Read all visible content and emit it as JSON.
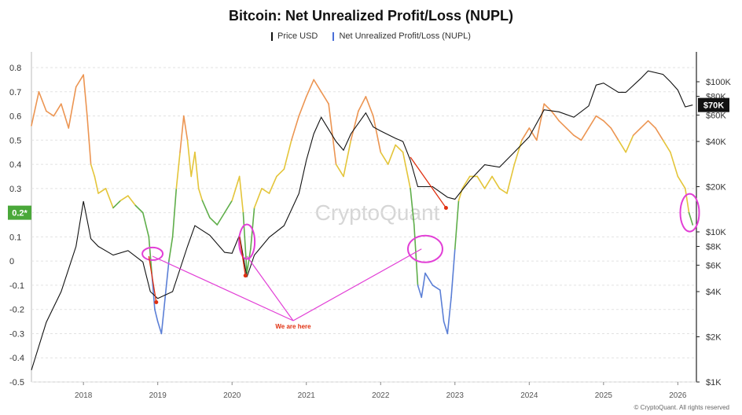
{
  "chart_data": {
    "type": "line",
    "title": "Bitcoin: Net Unrealized Profit/Loss (NUPL)",
    "legend": [
      "Price USD",
      "Net Unrealized Profit/Loss (NUPL)"
    ],
    "legend_placement": "top-center",
    "grid": "dashed horizontal",
    "x_ticks": [
      "2018",
      "2019",
      "2020",
      "2021",
      "2022",
      "2023",
      "2024",
      "2025",
      "2026"
    ],
    "y_left": {
      "ticks": [
        "0.8",
        "0.7",
        "0.6",
        "0.5",
        "0.4",
        "0.3",
        "0.2",
        "0.1",
        "0",
        "-0.1",
        "-0.2",
        "-0.3",
        "-0.4",
        "-0.5"
      ],
      "ylim": [
        -0.5,
        0.8
      ],
      "scale": "linear"
    },
    "y_right": {
      "ticks": [
        "$100K",
        "$80K",
        "$60K",
        "$40K",
        "$20K",
        "$10K",
        "$8K",
        "$6K",
        "$4K",
        "$2K",
        "$1K"
      ],
      "ylim": [
        1000,
        100000
      ],
      "scale": "log"
    },
    "current_nupl_label": "0.2*",
    "current_price_label": "$70K",
    "annotation": "We are here",
    "series": [
      {
        "name": "Net Unrealized Profit/Loss (NUPL)",
        "axis": "left",
        "x": [
          2017.3,
          2017.4,
          2017.5,
          2017.6,
          2017.7,
          2017.8,
          2017.9,
          2018.0,
          2018.05,
          2018.1,
          2018.15,
          2018.2,
          2018.3,
          2018.4,
          2018.5,
          2018.6,
          2018.7,
          2018.8,
          2018.88,
          2018.92,
          2018.96,
          2019.0,
          2019.05,
          2019.1,
          2019.15,
          2019.2,
          2019.25,
          2019.3,
          2019.35,
          2019.4,
          2019.45,
          2019.5,
          2019.55,
          2019.6,
          2019.7,
          2019.8,
          2019.9,
          2020.0,
          2020.1,
          2020.15,
          2020.2,
          2020.25,
          2020.3,
          2020.4,
          2020.5,
          2020.6,
          2020.7,
          2020.8,
          2020.9,
          2021.0,
          2021.1,
          2021.2,
          2021.3,
          2021.4,
          2021.5,
          2021.6,
          2021.7,
          2021.8,
          2021.9,
          2022.0,
          2022.1,
          2022.2,
          2022.3,
          2022.4,
          2022.45,
          2022.5,
          2022.55,
          2022.6,
          2022.7,
          2022.8,
          2022.85,
          2022.9,
          2022.95,
          2023.0,
          2023.05,
          2023.1,
          2023.2,
          2023.3,
          2023.4,
          2023.5,
          2023.6,
          2023.7,
          2023.8,
          2023.9,
          2024.0,
          2024.1,
          2024.2,
          2024.3,
          2024.4,
          2024.5,
          2024.6,
          2024.7,
          2024.8,
          2024.9,
          2025.0,
          2025.1,
          2025.2,
          2025.3,
          2025.4,
          2025.5,
          2025.6,
          2025.7,
          2025.8,
          2025.9,
          2026.0,
          2026.1,
          2026.15,
          2026.2
        ],
        "values": [
          0.56,
          0.7,
          0.62,
          0.6,
          0.65,
          0.55,
          0.72,
          0.77,
          0.6,
          0.4,
          0.35,
          0.28,
          0.3,
          0.22,
          0.25,
          0.27,
          0.23,
          0.2,
          0.1,
          -0.05,
          -0.2,
          -0.25,
          -0.3,
          -0.15,
          0.0,
          0.1,
          0.3,
          0.45,
          0.6,
          0.5,
          0.35,
          0.45,
          0.3,
          0.25,
          0.18,
          0.15,
          0.2,
          0.25,
          0.35,
          0.2,
          -0.05,
          0.05,
          0.22,
          0.3,
          0.28,
          0.35,
          0.38,
          0.5,
          0.6,
          0.68,
          0.75,
          0.7,
          0.65,
          0.4,
          0.35,
          0.5,
          0.62,
          0.68,
          0.6,
          0.45,
          0.4,
          0.48,
          0.45,
          0.3,
          0.15,
          -0.1,
          -0.15,
          -0.05,
          -0.1,
          -0.12,
          -0.25,
          -0.3,
          -0.15,
          0.05,
          0.25,
          0.3,
          0.35,
          0.35,
          0.3,
          0.35,
          0.3,
          0.28,
          0.4,
          0.5,
          0.55,
          0.5,
          0.65,
          0.62,
          0.58,
          0.55,
          0.52,
          0.5,
          0.55,
          0.6,
          0.58,
          0.55,
          0.5,
          0.45,
          0.52,
          0.55,
          0.58,
          0.55,
          0.5,
          0.45,
          0.35,
          0.3,
          0.2,
          0.15
        ]
      },
      {
        "name": "Price USD",
        "axis": "right",
        "x": [
          2017.3,
          2017.5,
          2017.7,
          2017.9,
          2018.0,
          2018.1,
          2018.2,
          2018.4,
          2018.6,
          2018.8,
          2018.9,
          2019.0,
          2019.2,
          2019.4,
          2019.5,
          2019.7,
          2019.9,
          2020.0,
          2020.1,
          2020.2,
          2020.3,
          2020.5,
          2020.7,
          2020.9,
          2021.0,
          2021.1,
          2021.2,
          2021.4,
          2021.5,
          2021.6,
          2021.8,
          2021.9,
          2022.0,
          2022.2,
          2022.3,
          2022.4,
          2022.5,
          2022.7,
          2022.9,
          2023.0,
          2023.2,
          2023.4,
          2023.6,
          2023.8,
          2024.0,
          2024.2,
          2024.4,
          2024.6,
          2024.8,
          2024.9,
          2025.0,
          2025.2,
          2025.3,
          2025.5,
          2025.6,
          2025.8,
          2025.9,
          2026.0,
          2026.1,
          2026.2
        ],
        "values": [
          1200,
          2500,
          4000,
          8000,
          16000,
          9000,
          8000,
          7000,
          7500,
          6300,
          4000,
          3600,
          4000,
          8000,
          11000,
          9500,
          7300,
          7200,
          9500,
          5000,
          7000,
          9200,
          11000,
          18000,
          30000,
          45000,
          58000,
          40000,
          35000,
          45000,
          62000,
          50000,
          47000,
          42000,
          40000,
          30000,
          20000,
          20000,
          17000,
          16500,
          22000,
          28000,
          27000,
          34000,
          43000,
          65000,
          63000,
          58000,
          69000,
          95000,
          98000,
          85000,
          85000,
          105000,
          118000,
          112000,
          100000,
          88000,
          68000,
          70000
        ]
      }
    ]
  },
  "footer": "© CryptoQuant. All rights reserved",
  "watermark": "CryptoQuant"
}
